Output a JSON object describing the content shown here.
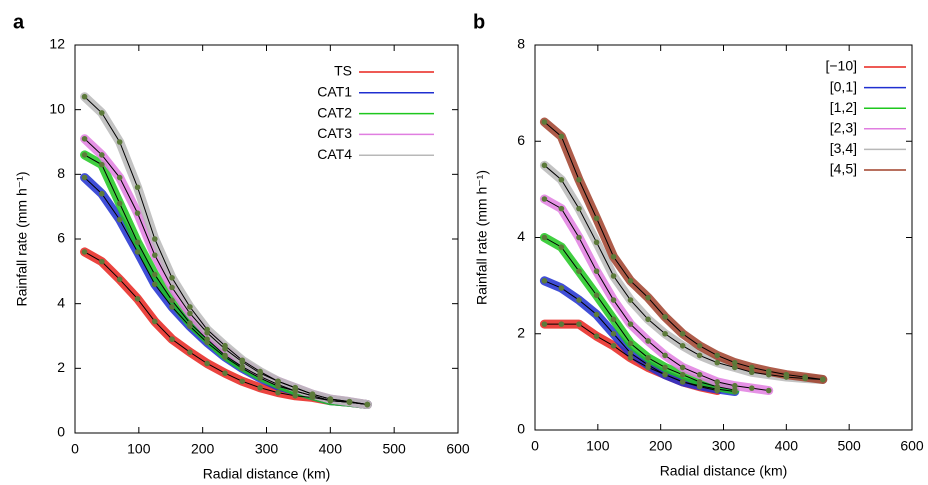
{
  "chart_data": [
    {
      "type": "line",
      "panel_label": "a",
      "xlabel": "Radial distance (km)",
      "ylabel": "Rainfall rate (mm h⁻¹)",
      "xlim": [
        0,
        600
      ],
      "ylim": [
        0,
        12
      ],
      "xticks": [
        0,
        100,
        200,
        300,
        400,
        500,
        600
      ],
      "yticks": [
        0,
        2,
        4,
        6,
        8,
        10,
        12
      ],
      "legend": "upper right",
      "x": [
        15,
        42,
        70,
        98,
        125,
        152,
        180,
        207,
        235,
        262,
        290,
        318,
        345,
        372,
        400,
        430,
        458
      ],
      "series": [
        {
          "name": "TS",
          "color": "#e8231d",
          "values": [
            5.6,
            5.3,
            4.75,
            4.15,
            3.45,
            2.9,
            2.5,
            2.15,
            1.85,
            1.6,
            1.4,
            1.25,
            1.15,
            1.1,
            1.0,
            0.95,
            0.88
          ]
        },
        {
          "name": "CAT1",
          "color": "#1f2fd0",
          "values": [
            7.9,
            7.4,
            6.6,
            5.6,
            4.6,
            3.9,
            3.3,
            2.8,
            2.35,
            2.0,
            1.7,
            1.45,
            1.3,
            1.15,
            1.0,
            0.95,
            0.88
          ]
        },
        {
          "name": "CAT2",
          "color": "#1ec71e",
          "values": [
            8.6,
            8.3,
            7.1,
            5.9,
            4.9,
            4.1,
            3.4,
            2.9,
            2.4,
            2.05,
            1.75,
            1.5,
            1.3,
            1.15,
            1.0,
            0.95,
            0.88
          ]
        },
        {
          "name": "CAT3",
          "color": "#e07ee0",
          "values": [
            9.1,
            8.6,
            7.9,
            6.8,
            5.5,
            4.5,
            3.7,
            3.1,
            2.6,
            2.2,
            1.85,
            1.6,
            1.4,
            1.2,
            1.05,
            0.97,
            0.88
          ]
        },
        {
          "name": "CAT4",
          "color": "#b8b8b8",
          "values": [
            10.4,
            9.9,
            9.0,
            7.6,
            6.0,
            4.8,
            3.9,
            3.2,
            2.7,
            2.25,
            1.9,
            1.6,
            1.4,
            1.2,
            1.05,
            0.97,
            0.88
          ]
        }
      ]
    },
    {
      "type": "line",
      "panel_label": "b",
      "xlabel": "Radial distance (km)",
      "ylabel": "Rainfall rate (mm h⁻¹)",
      "xlim": [
        0,
        600
      ],
      "ylim": [
        0,
        8
      ],
      "xticks": [
        0,
        100,
        200,
        300,
        400,
        500,
        600
      ],
      "yticks": [
        0,
        2,
        4,
        6,
        8
      ],
      "legend": "upper right",
      "x": [
        15,
        42,
        70,
        98,
        125,
        152,
        180,
        207,
        235,
        262,
        290,
        318,
        345,
        372,
        400,
        430,
        458
      ],
      "series": [
        {
          "name": "[−10]",
          "color": "#e8231d",
          "values": [
            2.2,
            2.2,
            2.2,
            1.95,
            1.75,
            1.5,
            1.3,
            1.15,
            1.0,
            0.9,
            0.82,
            null,
            null,
            null,
            null,
            null,
            null
          ]
        },
        {
          "name": "[0,1]",
          "color": "#1f2fd0",
          "values": [
            3.1,
            2.95,
            2.7,
            2.4,
            2.0,
            1.6,
            1.35,
            1.15,
            1.0,
            0.92,
            0.85,
            0.8,
            null,
            null,
            null,
            null,
            null
          ]
        },
        {
          "name": "[1,2]",
          "color": "#1ec71e",
          "values": [
            4.0,
            3.8,
            3.3,
            2.8,
            2.3,
            1.8,
            1.5,
            1.3,
            1.15,
            1.0,
            0.9,
            0.83,
            null,
            null,
            null,
            null,
            null
          ]
        },
        {
          "name": "[2,3]",
          "color": "#e07ee0",
          "values": [
            4.8,
            4.6,
            4.0,
            3.3,
            2.7,
            2.2,
            1.85,
            1.55,
            1.3,
            1.15,
            1.0,
            0.92,
            0.87,
            0.82,
            null,
            null,
            null
          ]
        },
        {
          "name": "[3,4]",
          "color": "#b8b8b8",
          "values": [
            5.5,
            5.2,
            4.6,
            3.9,
            3.2,
            2.7,
            2.3,
            2.0,
            1.75,
            1.55,
            1.4,
            1.3,
            1.2,
            1.15,
            1.1,
            1.07,
            1.05
          ]
        },
        {
          "name": "[4,5]",
          "color": "#a0402a",
          "values": [
            6.4,
            6.1,
            5.2,
            4.4,
            3.6,
            3.1,
            2.75,
            2.35,
            2.0,
            1.75,
            1.55,
            1.4,
            1.3,
            1.22,
            1.15,
            1.1,
            1.05
          ]
        }
      ]
    }
  ]
}
